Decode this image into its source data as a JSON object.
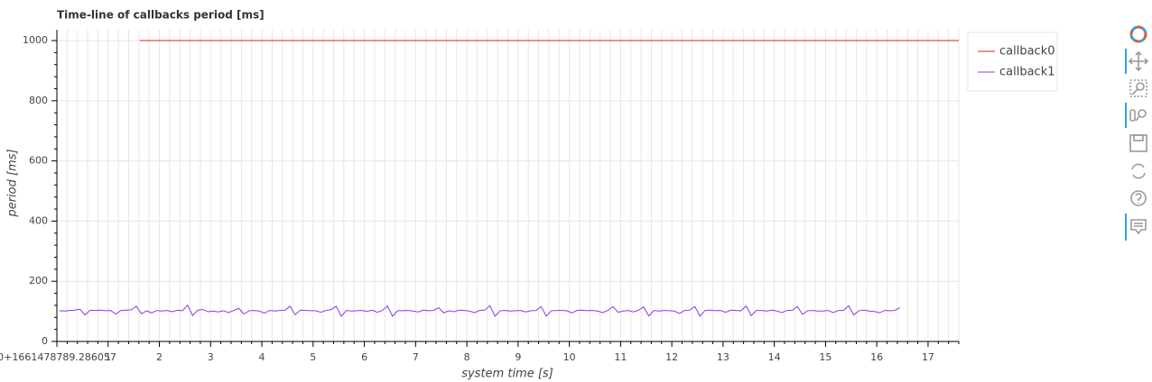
{
  "chart_data": {
    "type": "line",
    "title": "Time-line of callbacks period [ms]",
    "x_label": "system time [s]",
    "y_label": "period [ms]",
    "xlim": [
      0,
      17.6
    ],
    "ylim": [
      0,
      1036
    ],
    "xticks": [
      {
        "value": 0,
        "label": "0+1661478789.286057"
      },
      1,
      2,
      3,
      4,
      5,
      6,
      7,
      8,
      9,
      10,
      11,
      12,
      13,
      14,
      15,
      16,
      17
    ],
    "yticks": [
      0,
      200,
      400,
      600,
      800,
      1000
    ],
    "x_minor_ticks": 5,
    "y_minor_ticks": 5,
    "grid": true,
    "legend_position": "outside-right",
    "series": [
      {
        "name": "callback0",
        "color": "#e8181d",
        "x": [
          1.62,
          2.62,
          3.62,
          4.62,
          5.62,
          6.62,
          7.62,
          8.62,
          9.62,
          10.62,
          11.62,
          12.62,
          13.62,
          14.62,
          15.62,
          16.62,
          17.62
        ],
        "values": [
          1000,
          1000,
          1000,
          1000,
          1000,
          1000,
          1000,
          1000,
          1000,
          1000,
          1000,
          1000,
          1000,
          1000,
          1000,
          1000,
          1000
        ]
      },
      {
        "name": "callback1",
        "color": "#8a3ce0",
        "x": [
          0.05,
          0.15,
          0.25,
          0.35,
          0.45,
          0.55,
          0.65,
          0.75,
          0.85,
          0.95,
          1.05,
          1.15,
          1.25,
          1.35,
          1.45,
          1.55,
          1.65,
          1.75,
          1.85,
          1.95,
          2.05,
          2.15,
          2.25,
          2.35,
          2.45,
          2.55,
          2.65,
          2.75,
          2.85,
          2.95,
          3.05,
          3.15,
          3.25,
          3.35,
          3.45,
          3.55,
          3.65,
          3.75,
          3.85,
          3.95,
          4.05,
          4.15,
          4.25,
          4.35,
          4.45,
          4.55,
          4.65,
          4.75,
          4.85,
          4.95,
          5.05,
          5.15,
          5.25,
          5.35,
          5.45,
          5.55,
          5.65,
          5.75,
          5.85,
          5.95,
          6.05,
          6.15,
          6.25,
          6.35,
          6.45,
          6.55,
          6.65,
          6.75,
          6.85,
          6.95,
          7.05,
          7.15,
          7.25,
          7.35,
          7.45,
          7.55,
          7.65,
          7.75,
          7.85,
          7.95,
          8.05,
          8.15,
          8.25,
          8.35,
          8.45,
          8.55,
          8.65,
          8.75,
          8.85,
          8.95,
          9.05,
          9.15,
          9.25,
          9.35,
          9.45,
          9.55,
          9.65,
          9.75,
          9.85,
          9.95,
          10.05,
          10.15,
          10.25,
          10.35,
          10.45,
          10.55,
          10.65,
          10.75,
          10.85,
          10.95,
          11.05,
          11.15,
          11.25,
          11.35,
          11.45,
          11.55,
          11.65,
          11.75,
          11.85,
          11.95,
          12.05,
          12.15,
          12.25,
          12.35,
          12.45,
          12.55,
          12.65,
          12.75,
          12.85,
          12.95,
          13.05,
          13.15,
          13.25,
          13.35,
          13.45,
          13.55,
          13.65,
          13.75,
          13.85,
          13.95,
          14.05,
          14.15,
          14.25,
          14.35,
          14.45,
          14.55,
          14.65,
          14.75,
          14.85,
          14.95,
          15.05,
          15.15,
          15.25,
          15.35,
          15.45,
          15.55,
          15.65,
          15.75,
          15.85,
          15.95,
          16.05,
          16.15,
          16.25,
          16.35,
          16.45
        ],
        "values": [
          102,
          101,
          103,
          104,
          107,
          88,
          104,
          103,
          104,
          102,
          103,
          91,
          103,
          104,
          105,
          117,
          92,
          102,
          95,
          103,
          101,
          103,
          99,
          104,
          102,
          121,
          86,
          104,
          106,
          99,
          101,
          98,
          102,
          96,
          103,
          110,
          91,
          102,
          103,
          101,
          94,
          103,
          101,
          103,
          104,
          117,
          89,
          104,
          103,
          102,
          102,
          97,
          103,
          106,
          117,
          84,
          103,
          101,
          102,
          103,
          100,
          104,
          97,
          103,
          118,
          84,
          102,
          102,
          103,
          101,
          98,
          104,
          102,
          103,
          112,
          95,
          102,
          99,
          104,
          103,
          101,
          96,
          103,
          104,
          119,
          84,
          102,
          103,
          101,
          102,
          103,
          98,
          102,
          103,
          116,
          84,
          102,
          103,
          103,
          102,
          95,
          103,
          104,
          102,
          103,
          101,
          96,
          103,
          116,
          97,
          101,
          103,
          98,
          104,
          115,
          85,
          103,
          101,
          103,
          102,
          101,
          93,
          103,
          104,
          116,
          84,
          103,
          104,
          102,
          103,
          97,
          104,
          103,
          102,
          118,
          86,
          103,
          103,
          101,
          104,
          101,
          96,
          103,
          104,
          116,
          90,
          102,
          103,
          101,
          101,
          103,
          96,
          103,
          103,
          119,
          88,
          102,
          104,
          101,
          100,
          95,
          103,
          102,
          103,
          112
        ]
      }
    ]
  }
}
